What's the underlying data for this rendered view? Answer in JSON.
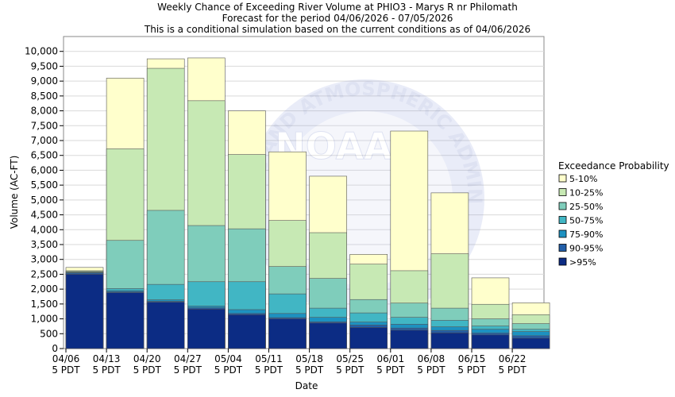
{
  "chart_data": {
    "type": "bar",
    "stacked": true,
    "title_lines": [
      "Weekly Chance of Exceeding River Volume at PHIO3 - Marys R nr Philomath",
      "Forecast for the period 04/06/2026 - 07/05/2026",
      "This is a conditional simulation based on the current conditions as of 04/06/2026"
    ],
    "xlabel": "Date",
    "ylabel": "Volume (AC-FT)",
    "ylim": [
      0,
      10500
    ],
    "y_ticks": [
      0,
      500,
      1000,
      1500,
      2000,
      2500,
      3000,
      3500,
      4000,
      4500,
      5000,
      5500,
      6000,
      6500,
      7000,
      7500,
      8000,
      8500,
      9000,
      9500,
      10000
    ],
    "y_tick_labels": [
      "0",
      "500",
      "1,000",
      "1,500",
      "2,000",
      "2,500",
      "3,000",
      "3,500",
      "4,000",
      "4,500",
      "5,000",
      "5,500",
      "6,000",
      "6,500",
      "7,000",
      "7,500",
      "8,000",
      "8,500",
      "9,000",
      "9,500",
      "10,000"
    ],
    "x_tick_dates": [
      "04/06",
      "04/13",
      "04/20",
      "04/27",
      "05/04",
      "05/11",
      "05/18",
      "05/25",
      "06/01",
      "06/08",
      "06/15",
      "06/22"
    ],
    "x_tick_sub": "5 PDT",
    "grid": true,
    "legend_title": "Exceedance Probability",
    "legend_position": "right",
    "series": [
      {
        "name": "5-10%",
        "color": "#ffffcc",
        "top_values": [
          2730,
          9100,
          9750,
          9780,
          8000,
          6620,
          5800,
          3170,
          7320,
          5240,
          2380,
          1540
        ]
      },
      {
        "name": "10-25%",
        "color": "#c7e9b4",
        "top_values": [
          2620,
          6720,
          9430,
          8340,
          6530,
          4310,
          3900,
          2840,
          2620,
          3190,
          1490,
          1140
        ]
      },
      {
        "name": "25-50%",
        "color": "#7fcdbb",
        "top_values": [
          2590,
          3640,
          4650,
          4140,
          4030,
          2760,
          2360,
          1650,
          1530,
          1360,
          1000,
          840
        ]
      },
      {
        "name": "50-75%",
        "color": "#41b6c4",
        "top_values": [
          2570,
          2020,
          2160,
          2250,
          2250,
          1840,
          1360,
          1200,
          1050,
          950,
          760,
          650
        ]
      },
      {
        "name": "75-90%",
        "color": "#1d91c0",
        "top_values": [
          2550,
          1950,
          1640,
          1430,
          1310,
          1180,
          1050,
          890,
          820,
          730,
          650,
          570
        ]
      },
      {
        "name": "90-95%",
        "color": "#225ea8",
        "top_values": [
          2540,
          1910,
          1590,
          1370,
          1180,
          1040,
          900,
          790,
          690,
          610,
          520,
          430
        ]
      },
      {
        "name": ">95%",
        "color": "#0c2c84",
        "top_values": [
          2500,
          1880,
          1560,
          1330,
          1140,
          1000,
          860,
          710,
          620,
          530,
          460,
          350
        ]
      }
    ],
    "watermark": {
      "arc_text": "NIC AND ATMOSPHERIC ADMINISTRATION",
      "center_text": "NOAA"
    }
  }
}
